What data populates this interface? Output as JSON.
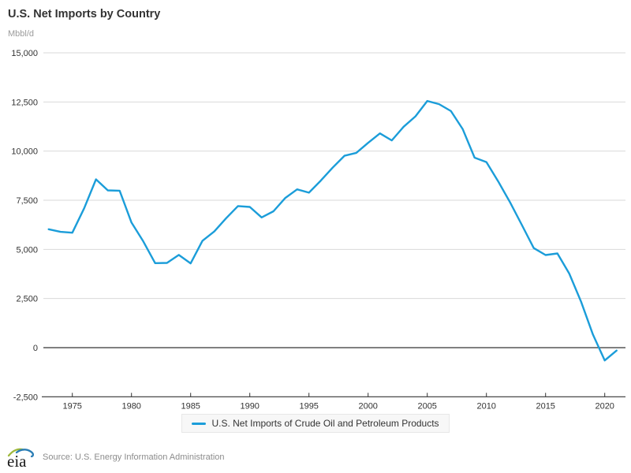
{
  "header": {
    "title": "U.S. Net Imports by Country",
    "unit_label": "Mbbl/d"
  },
  "legend": {
    "label": "U.S. Net Imports of Crude Oil and Petroleum Products"
  },
  "footer": {
    "logo_text": "eia",
    "source": "Source: U.S. Energy Information Administration"
  },
  "chart_data": {
    "type": "line",
    "title": "U.S. Net Imports by Country",
    "ylabel": "Mbbl/d",
    "xlabel": "",
    "grid": "horizontal",
    "legend_position": "bottom",
    "ylim": [
      -2500,
      15000
    ],
    "xlim": [
      1972.5,
      2022
    ],
    "yticks": [
      {
        "value": 15000,
        "label": "15,000"
      },
      {
        "value": 12500,
        "label": "12,500"
      },
      {
        "value": 10000,
        "label": "10,000"
      },
      {
        "value": 7500,
        "label": "7,500"
      },
      {
        "value": 5000,
        "label": "5,000"
      },
      {
        "value": 2500,
        "label": "2,500"
      },
      {
        "value": 0,
        "label": "0"
      },
      {
        "value": -2500,
        "label": "-2,500"
      }
    ],
    "xticks": [
      {
        "value": 1975,
        "label": "1975"
      },
      {
        "value": 1980,
        "label": "1980"
      },
      {
        "value": 1985,
        "label": "1985"
      },
      {
        "value": 1990,
        "label": "1990"
      },
      {
        "value": 1995,
        "label": "1995"
      },
      {
        "value": 2000,
        "label": "2000"
      },
      {
        "value": 2005,
        "label": "2005"
      },
      {
        "value": 2010,
        "label": "2010"
      },
      {
        "value": 2015,
        "label": "2015"
      },
      {
        "value": 2020,
        "label": "2020"
      }
    ],
    "colors": {
      "line": "#1b9dd9",
      "grid": "#d9d9d9",
      "zero_line": "#000000",
      "axis": "#333333",
      "tick_label": "#333333"
    },
    "x": [
      1973,
      1974,
      1975,
      1976,
      1977,
      1978,
      1979,
      1980,
      1981,
      1982,
      1983,
      1984,
      1985,
      1986,
      1987,
      1988,
      1989,
      1990,
      1991,
      1992,
      1993,
      1994,
      1995,
      1996,
      1997,
      1998,
      1999,
      2000,
      2001,
      2002,
      2003,
      2004,
      2005,
      2006,
      2007,
      2008,
      2009,
      2010,
      2011,
      2012,
      2013,
      2014,
      2015,
      2016,
      2017,
      2018,
      2019,
      2020,
      2021
    ],
    "series": [
      {
        "name": "U.S. Net Imports of Crude Oil and Petroleum Products",
        "color": "#1b9dd9",
        "values": [
          6025,
          5892,
          5846,
          7090,
          8565,
          8002,
          7985,
          6365,
          5401,
          4298,
          4312,
          4715,
          4286,
          5439,
          5914,
          6587,
          7202,
          7161,
          6626,
          6938,
          7618,
          8054,
          7886,
          8498,
          9158,
          9764,
          9912,
          10419,
          10900,
          10546,
          11238,
          11767,
          12549,
          12390,
          12036,
          11114,
          9667,
          9441,
          8454,
          7393,
          6238,
          5067,
          4711,
          4795,
          3770,
          2340,
          670,
          -650,
          -150
        ]
      }
    ]
  }
}
